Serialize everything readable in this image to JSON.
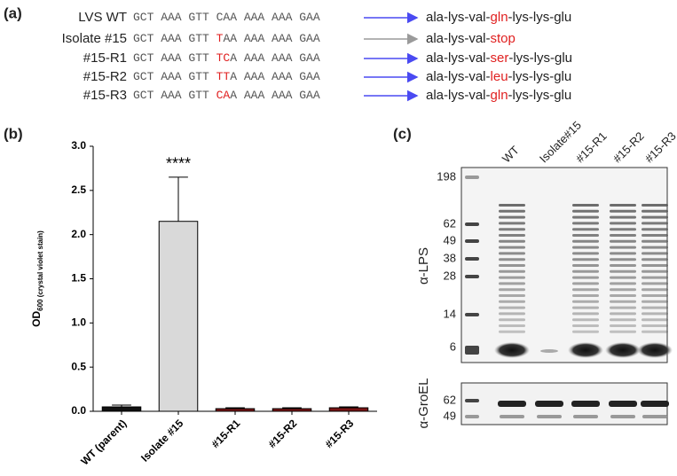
{
  "panel_a": {
    "label": "(a)",
    "rows": [
      {
        "name": "LVS WT",
        "sequence": [
          {
            "text": "GCT AAA GTT CAA AAA AAA GAA",
            "mutated": false
          }
        ],
        "arrow_color": "#4a4af2",
        "protein": [
          {
            "text": "ala-lys-val-",
            "mutated": false
          },
          {
            "text": "gln",
            "mutated": true
          },
          {
            "text": "-lys-lys-glu",
            "mutated": false
          }
        ]
      },
      {
        "name": "Isolate #15",
        "sequence": [
          {
            "text": "GCT AAA GTT ",
            "mutated": false
          },
          {
            "text": "T",
            "mutated": true
          },
          {
            "text": "AA AAA AAA GAA",
            "mutated": false
          }
        ],
        "arrow_color": "#9a9a9a",
        "protein": [
          {
            "text": "ala-lys-val-",
            "mutated": false
          },
          {
            "text": "stop",
            "mutated": true
          }
        ]
      },
      {
        "name": "#15-R1",
        "sequence": [
          {
            "text": "GCT AAA GTT ",
            "mutated": false
          },
          {
            "text": "TC",
            "mutated": true
          },
          {
            "text": "A AAA AAA GAA",
            "mutated": false
          }
        ],
        "arrow_color": "#4a4af2",
        "protein": [
          {
            "text": "ala-lys-val-",
            "mutated": false
          },
          {
            "text": "ser",
            "mutated": true
          },
          {
            "text": "-lys-lys-glu",
            "mutated": false
          }
        ]
      },
      {
        "name": "#15-R2",
        "sequence": [
          {
            "text": "GCT AAA GTT ",
            "mutated": false
          },
          {
            "text": "TT",
            "mutated": true
          },
          {
            "text": "A AAA AAA GAA",
            "mutated": false
          }
        ],
        "arrow_color": "#4a4af2",
        "protein": [
          {
            "text": "ala-lys-val-",
            "mutated": false
          },
          {
            "text": "leu",
            "mutated": true
          },
          {
            "text": "-lys-lys-glu",
            "mutated": false
          }
        ]
      },
      {
        "name": "#15-R3",
        "sequence": [
          {
            "text": "GCT AAA GTT ",
            "mutated": false
          },
          {
            "text": "CA",
            "mutated": true
          },
          {
            "text": "A AAA AAA GAA",
            "mutated": false
          }
        ],
        "arrow_color": "#4a4af2",
        "protein": [
          {
            "text": "ala-lys-val-",
            "mutated": false
          },
          {
            "text": "gln",
            "mutated": true
          },
          {
            "text": "-lys-lys-glu",
            "mutated": false
          }
        ]
      }
    ]
  },
  "chart_data": {
    "type": "bar",
    "label": "(b)",
    "y_label": {
      "main": "OD",
      "sub": "600 (crystal violet stain)"
    },
    "categories": [
      "WT (parent)",
      "Isolate #15",
      "#15-R1",
      "#15-R2",
      "#15-R3"
    ],
    "values": [
      0.05,
      2.15,
      0.03,
      0.03,
      0.04
    ],
    "errors": [
      0.02,
      0.5,
      0.01,
      0.01,
      0.01
    ],
    "colors": [
      "#111111",
      "#d9d9d9",
      "#7a1414",
      "#7a1414",
      "#7a1414"
    ],
    "ylim": [
      0,
      3
    ],
    "yticks": [
      {
        "value": 0,
        "label": "0.0"
      },
      {
        "value": 0.5,
        "label": "0.5"
      },
      {
        "value": 1,
        "label": "1.0"
      },
      {
        "value": 1.5,
        "label": "1.5"
      },
      {
        "value": 2,
        "label": "2.0"
      },
      {
        "value": 2.5,
        "label": "2.5"
      },
      {
        "value": 3,
        "label": "3.0"
      }
    ],
    "annotations": [
      {
        "text": "****",
        "category": "Isolate #15"
      }
    ]
  },
  "panel_c": {
    "label": "(c)",
    "lanes": [
      "WT",
      "Isolate#15",
      "#15-R1",
      "#15-R2",
      "#15-R3"
    ],
    "lps": {
      "label": "α-LPS",
      "markers": [
        "198",
        "62",
        "49",
        "38",
        "28",
        "14",
        "6"
      ]
    },
    "groel": {
      "label": "α-GroEL",
      "markers": [
        "62",
        "49"
      ]
    }
  }
}
